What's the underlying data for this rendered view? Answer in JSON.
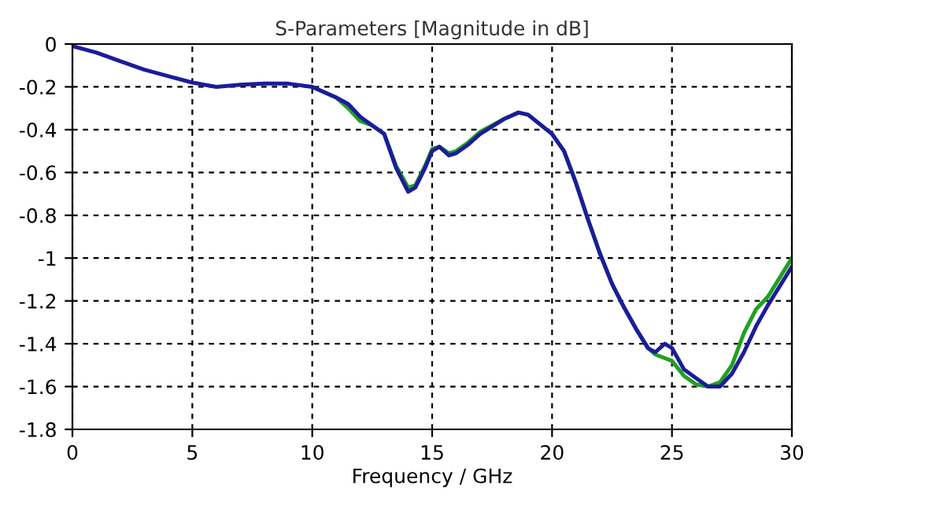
{
  "chart_data": {
    "type": "line",
    "title": "S-Parameters [Magnitude in dB]",
    "xlabel": "Frequency / GHz",
    "xlim": [
      0,
      30
    ],
    "xticks": [
      0,
      5,
      10,
      15,
      20,
      25,
      30
    ],
    "ylim": [
      -1.8,
      0
    ],
    "yticks": [
      -1.8,
      -1.6,
      -1.4,
      -1.2,
      -1,
      -0.8,
      -0.6,
      -0.4,
      -0.2,
      0
    ],
    "grid": true,
    "line_style": "solid",
    "series": [
      {
        "color": "#22a022",
        "x": [
          10,
          11,
          11.5,
          12,
          12.5,
          13,
          13.5,
          14,
          14.3,
          14.7,
          15,
          15.3,
          15.7,
          16,
          16.5,
          17,
          18,
          18.6,
          19,
          20,
          20.5,
          21,
          21.5,
          22,
          22.5,
          23,
          23.5,
          24,
          24.3,
          25,
          25.5,
          26,
          26.5,
          27,
          27.5,
          28,
          28.5,
          29,
          30
        ],
        "values": [
          -0.2,
          -0.25,
          -0.3,
          -0.36,
          -0.38,
          -0.42,
          -0.57,
          -0.67,
          -0.66,
          -0.57,
          -0.49,
          -0.48,
          -0.51,
          -0.5,
          -0.46,
          -0.41,
          -0.35,
          -0.32,
          -0.33,
          -0.42,
          -0.5,
          -0.65,
          -0.82,
          -0.98,
          -1.12,
          -1.23,
          -1.33,
          -1.42,
          -1.45,
          -1.48,
          -1.55,
          -1.59,
          -1.6,
          -1.58,
          -1.5,
          -1.35,
          -1.24,
          -1.18,
          -1.0
        ]
      },
      {
        "color": "#1c1c9c",
        "x": [
          0,
          1,
          2,
          3,
          4,
          5,
          6,
          7,
          8,
          9,
          10,
          11,
          11.5,
          12,
          12.5,
          13,
          13.5,
          14,
          14.3,
          14.7,
          15,
          15.3,
          15.7,
          16,
          16.5,
          17,
          18,
          18.6,
          19,
          20,
          20.5,
          21,
          21.5,
          22,
          22.5,
          23,
          23.5,
          24,
          24.3,
          24.7,
          25,
          25.5,
          26,
          26.5,
          27,
          27.5,
          28,
          28.5,
          29,
          30
        ],
        "values": [
          -0.01,
          -0.04,
          -0.08,
          -0.12,
          -0.15,
          -0.18,
          -0.2,
          -0.19,
          -0.185,
          -0.185,
          -0.2,
          -0.25,
          -0.28,
          -0.34,
          -0.38,
          -0.42,
          -0.58,
          -0.69,
          -0.67,
          -0.58,
          -0.5,
          -0.48,
          -0.52,
          -0.51,
          -0.47,
          -0.42,
          -0.35,
          -0.32,
          -0.33,
          -0.42,
          -0.5,
          -0.65,
          -0.82,
          -0.98,
          -1.12,
          -1.23,
          -1.33,
          -1.42,
          -1.44,
          -1.4,
          -1.42,
          -1.52,
          -1.56,
          -1.6,
          -1.6,
          -1.54,
          -1.44,
          -1.32,
          -1.22,
          -1.04
        ]
      }
    ]
  }
}
